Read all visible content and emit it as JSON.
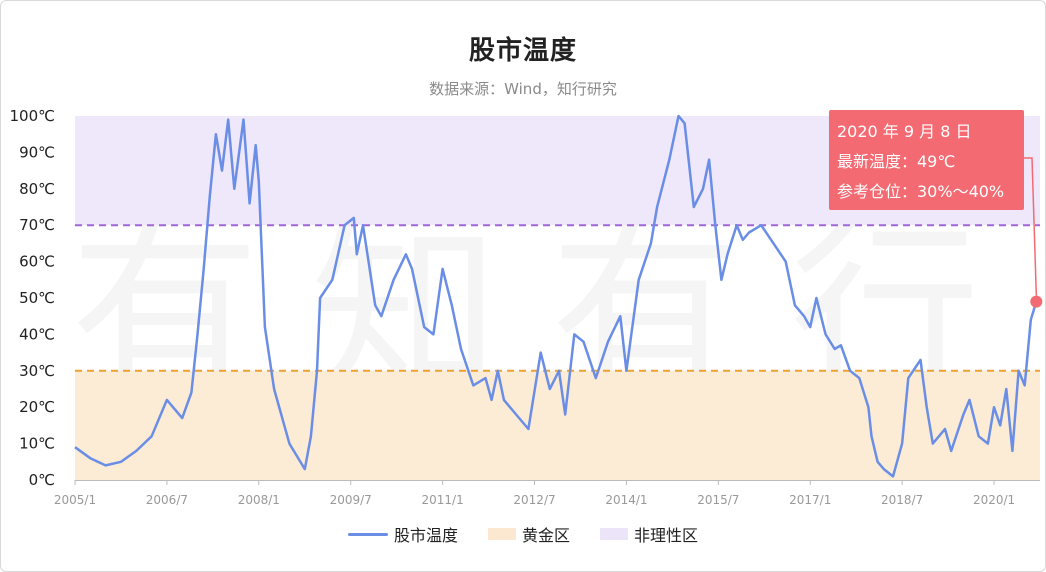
{
  "header": {
    "title": "股市温度",
    "subtitle": "数据来源：Wind，知行研究"
  },
  "watermark": "有知有行",
  "callout": {
    "date": "2020 年 9 月 8 日",
    "latest_temp": "最新温度：49℃",
    "position": "参考仓位：30%～40%",
    "color": "#f46a72"
  },
  "legend": {
    "items": [
      {
        "label": "股市温度",
        "kind": "line",
        "color": "#6a8ee6"
      },
      {
        "label": "黄金区",
        "kind": "box",
        "color": "#fce8d0"
      },
      {
        "label": "非理性区",
        "kind": "box",
        "color": "#ece4f9"
      }
    ]
  },
  "chart_data": {
    "type": "line",
    "series": [
      {
        "name": "股市温度",
        "x": [
          2005.0,
          2005.25,
          2005.5,
          2005.75,
          2006.0,
          2006.25,
          2006.5,
          2006.75,
          2006.9,
          2007.0,
          2007.1,
          2007.2,
          2007.3,
          2007.4,
          2007.5,
          2007.6,
          2007.75,
          2007.85,
          2007.95,
          2008.0,
          2008.1,
          2008.25,
          2008.5,
          2008.75,
          2008.85,
          2008.95,
          2009.0,
          2009.2,
          2009.4,
          2009.55,
          2009.6,
          2009.7,
          2009.9,
          2010.0,
          2010.2,
          2010.4,
          2010.5,
          2010.7,
          2010.85,
          2011.0,
          2011.15,
          2011.3,
          2011.5,
          2011.7,
          2011.8,
          2011.9,
          2012.0,
          2012.2,
          2012.4,
          2012.6,
          2012.75,
          2012.9,
          2013.0,
          2013.15,
          2013.3,
          2013.5,
          2013.7,
          2013.9,
          2014.0,
          2014.2,
          2014.4,
          2014.5,
          2014.7,
          2014.85,
          2014.95,
          2015.1,
          2015.25,
          2015.35,
          2015.45,
          2015.55,
          2015.65,
          2015.8,
          2015.9,
          2016.0,
          2016.2,
          2016.4,
          2016.6,
          2016.75,
          2016.9,
          2017.0,
          2017.1,
          2017.25,
          2017.4,
          2017.5,
          2017.65,
          2017.8,
          2017.95,
          2018.0,
          2018.1,
          2018.2,
          2018.35,
          2018.5,
          2018.6,
          2018.8,
          2018.9,
          2019.0,
          2019.1,
          2019.2,
          2019.3,
          2019.5,
          2019.6,
          2019.75,
          2019.9,
          2020.0,
          2020.1,
          2020.2,
          2020.3,
          2020.4,
          2020.5,
          2020.6,
          2020.69
        ],
        "y": [
          9,
          6,
          4,
          5,
          8,
          12,
          22,
          17,
          24,
          40,
          58,
          78,
          95,
          85,
          99,
          80,
          99,
          76,
          92,
          82,
          42,
          25,
          10,
          3,
          12,
          30,
          50,
          55,
          70,
          72,
          62,
          70,
          48,
          45,
          55,
          62,
          58,
          42,
          40,
          58,
          48,
          36,
          26,
          28,
          22,
          30,
          22,
          18,
          14,
          35,
          25,
          30,
          18,
          40,
          38,
          28,
          38,
          45,
          30,
          55,
          65,
          75,
          88,
          100,
          98,
          75,
          80,
          88,
          70,
          55,
          62,
          70,
          66,
          68,
          70,
          65,
          60,
          48,
          45,
          42,
          50,
          40,
          36,
          37,
          30,
          28,
          20,
          12,
          5,
          3,
          1,
          10,
          28,
          33,
          20,
          10,
          12,
          14,
          8,
          18,
          22,
          12,
          10,
          20,
          15,
          25,
          8,
          30,
          26,
          44,
          49
        ],
        "color": "#6a8ee6"
      }
    ],
    "x_ticks": [
      "2005/1",
      "2006/7",
      "2008/1",
      "2009/7",
      "2011/1",
      "2012/7",
      "2014/1",
      "2015/7",
      "2017/1",
      "2018/7",
      "2020/1"
    ],
    "y_ticks": [
      "0℃",
      "10℃",
      "20℃",
      "30℃",
      "40℃",
      "50℃",
      "60℃",
      "70℃",
      "80℃",
      "90℃",
      "100℃"
    ],
    "ylim": [
      0,
      100
    ],
    "xlim": [
      2005.0,
      2020.75
    ],
    "bands": [
      {
        "name": "黄金区",
        "from": 0,
        "to": 30,
        "color": "#fcecd6",
        "line_color": "#f0a030"
      },
      {
        "name": "非理性区",
        "from": 70,
        "to": 100,
        "color": "#efe7fa",
        "line_color": "#a066d8"
      }
    ],
    "latest_point": {
      "x": 2020.69,
      "y": 49
    },
    "grid": false,
    "legend_position": "bottom"
  }
}
